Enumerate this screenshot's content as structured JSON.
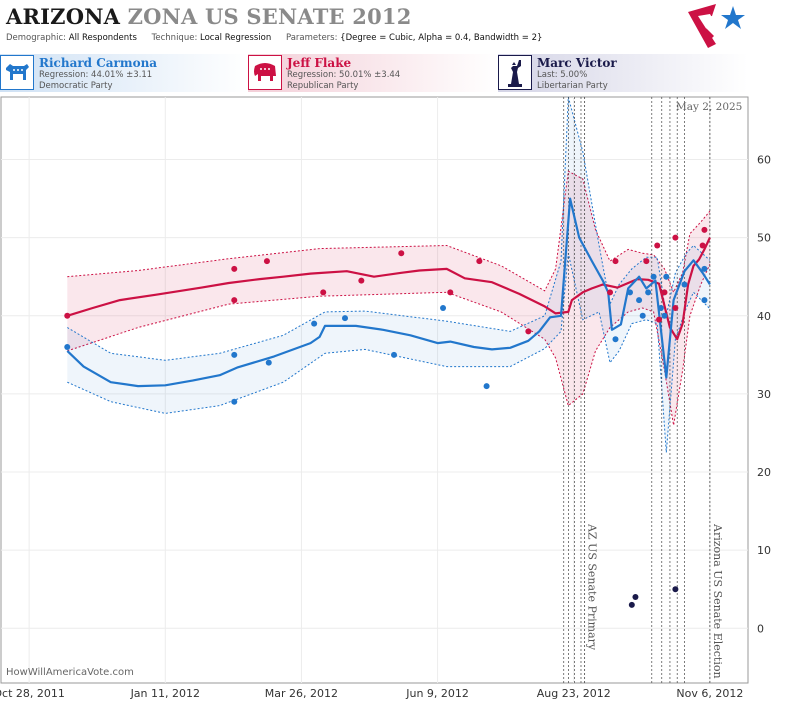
{
  "header": {
    "title_state": "ARIZONA",
    "title_rest": "ZONA US SENATE 2012",
    "demographic_label": "Demographic:",
    "demographic_value": "All Respondents",
    "technique_label": "Technique:",
    "technique_value": "Local Regression",
    "parameters_label": "Parameters:",
    "parameters_value": "{Degree = Cubic, Alpha = 0.4, Bandwidth = 2}"
  },
  "candidates": {
    "dem": {
      "name": "Richard Carmona",
      "stat": "Regression: 44.01% ±3.11",
      "party": "Democratic Party",
      "color": "#2277cc",
      "icon": "donkey-icon"
    },
    "rep": {
      "name": "Jeff Flake",
      "stat": "Regression: 50.01% ±3.44",
      "party": "Republican Party",
      "color": "#cc1144",
      "icon": "elephant-icon"
    },
    "lib": {
      "name": "Marc Victor",
      "stat": "Last: 5.00%",
      "party": "Libertarian Party",
      "color": "#1a1a4a",
      "icon": "statue-of-liberty-icon"
    }
  },
  "watermark": "HowWillAmericaVote.com",
  "date_stamp": "May 2, 2025",
  "chart_data": {
    "type": "line",
    "ylim": [
      -7,
      68
    ],
    "xlim_days": [
      -15.5,
      396
    ],
    "yticks": [
      0,
      10,
      20,
      30,
      40,
      50,
      60
    ],
    "xticks": [
      {
        "label": "Oct 28, 2011",
        "day": 0
      },
      {
        "label": "Jan 11, 2012",
        "day": 75
      },
      {
        "label": "Mar 26, 2012",
        "day": 150
      },
      {
        "label": "Jun 9, 2012",
        "day": 225
      },
      {
        "label": "Aug 23, 2012",
        "day": 300
      },
      {
        "label": "Nov 6, 2012",
        "day": 375
      }
    ],
    "events": [
      {
        "label": "AZ US Senate Primary",
        "day": 306
      },
      {
        "label": "Arizona US Senate Election",
        "day": 375
      }
    ],
    "series": [
      {
        "name": "Jeff Flake",
        "color": "#cc1144",
        "fill": "rgba(204,17,68,0.10)",
        "line": [
          [
            21,
            40
          ],
          [
            35,
            41
          ],
          [
            50,
            42
          ],
          [
            70,
            42.7
          ],
          [
            95,
            43.6
          ],
          [
            110,
            44.2
          ],
          [
            127,
            44.7
          ],
          [
            140,
            45
          ],
          [
            155,
            45.4
          ],
          [
            175,
            45.7
          ],
          [
            190,
            45
          ],
          [
            205,
            45.5
          ],
          [
            215,
            45.8
          ],
          [
            230,
            46
          ],
          [
            240,
            44.8
          ],
          [
            255,
            44.3
          ],
          [
            270,
            42.8
          ],
          [
            284,
            41.2
          ],
          [
            290,
            40.3
          ],
          [
            297,
            40.5
          ],
          [
            299,
            42
          ],
          [
            305,
            43
          ],
          [
            310,
            43.5
          ],
          [
            316,
            44
          ],
          [
            324,
            43.6
          ],
          [
            330,
            44.2
          ],
          [
            335,
            44.7
          ],
          [
            341,
            44.6
          ],
          [
            347,
            44.1
          ],
          [
            353,
            38.5
          ],
          [
            357,
            37
          ],
          [
            360,
            39
          ],
          [
            363,
            44
          ],
          [
            366,
            46.4
          ],
          [
            369,
            47.2
          ],
          [
            372,
            48.5
          ],
          [
            375,
            50.01
          ]
        ],
        "upper": [
          [
            21,
            45
          ],
          [
            60,
            45.8
          ],
          [
            110,
            47.3
          ],
          [
            160,
            48.6
          ],
          [
            230,
            49
          ],
          [
            260,
            46.4
          ],
          [
            284,
            43.2
          ],
          [
            290,
            46
          ],
          [
            297,
            58.5
          ],
          [
            305,
            57.5
          ],
          [
            312,
            51
          ],
          [
            320,
            47
          ],
          [
            330,
            48.5
          ],
          [
            338,
            48
          ],
          [
            344,
            47.8
          ],
          [
            350,
            46
          ],
          [
            355,
            43
          ],
          [
            360,
            45.5
          ],
          [
            364,
            50.5
          ],
          [
            370,
            52
          ],
          [
            375,
            53.4
          ]
        ],
        "lower": [
          [
            21,
            35.5
          ],
          [
            60,
            38.5
          ],
          [
            110,
            41.5
          ],
          [
            160,
            42.5
          ],
          [
            230,
            43
          ],
          [
            260,
            40.5
          ],
          [
            284,
            37
          ],
          [
            290,
            34.6
          ],
          [
            297,
            28.5
          ],
          [
            305,
            30
          ],
          [
            312,
            35.5
          ],
          [
            320,
            38.5
          ],
          [
            330,
            40.5
          ],
          [
            338,
            41
          ],
          [
            344,
            40.5
          ],
          [
            350,
            33
          ],
          [
            355,
            26
          ],
          [
            360,
            33
          ],
          [
            364,
            40
          ],
          [
            370,
            44
          ],
          [
            375,
            46.6
          ]
        ],
        "points": [
          [
            21,
            40
          ],
          [
            113,
            46
          ],
          [
            113,
            42
          ],
          [
            131,
            47
          ],
          [
            162,
            43
          ],
          [
            183,
            44.5
          ],
          [
            205,
            48
          ],
          [
            232,
            43
          ],
          [
            248,
            47
          ],
          [
            275,
            38
          ],
          [
            320,
            43
          ],
          [
            323,
            47
          ],
          [
            340,
            47
          ],
          [
            346,
            49
          ],
          [
            347,
            39.5
          ],
          [
            350,
            43
          ],
          [
            356,
            41
          ],
          [
            356,
            50
          ],
          [
            371,
            49
          ],
          [
            372,
            51
          ]
        ]
      },
      {
        "name": "Richard Carmona",
        "color": "#2277cc",
        "fill": "rgba(34,119,204,0.07)",
        "line": [
          [
            21,
            35.5
          ],
          [
            30,
            33.5
          ],
          [
            45,
            31.5
          ],
          [
            60,
            31
          ],
          [
            75,
            31.1
          ],
          [
            90,
            31.7
          ],
          [
            105,
            32.4
          ],
          [
            115,
            33.4
          ],
          [
            135,
            34.8
          ],
          [
            155,
            36.5
          ],
          [
            160,
            37.3
          ],
          [
            163,
            38.7
          ],
          [
            172,
            38.7
          ],
          [
            180,
            38.7
          ],
          [
            195,
            38.2
          ],
          [
            210,
            37.5
          ],
          [
            225,
            36.5
          ],
          [
            232,
            36.7
          ],
          [
            245,
            36
          ],
          [
            255,
            35.7
          ],
          [
            265,
            35.9
          ],
          [
            275,
            36.8
          ],
          [
            281,
            38
          ],
          [
            287,
            39.8
          ],
          [
            293,
            40
          ],
          [
            298,
            55
          ],
          [
            303,
            50
          ],
          [
            310,
            47
          ],
          [
            316,
            44.5
          ],
          [
            319,
            43
          ],
          [
            321,
            38.2
          ],
          [
            326,
            38.9
          ],
          [
            330,
            43.5
          ],
          [
            336,
            45
          ],
          [
            340,
            43.5
          ],
          [
            345,
            44.5
          ],
          [
            351,
            32.1
          ],
          [
            355,
            42
          ],
          [
            361,
            45.7
          ],
          [
            366,
            47.1
          ],
          [
            371,
            45.5
          ],
          [
            375,
            44.01
          ]
        ],
        "upper": [
          [
            21,
            38.5
          ],
          [
            45,
            35.2
          ],
          [
            75,
            34.3
          ],
          [
            105,
            35.2
          ],
          [
            140,
            37.5
          ],
          [
            163,
            40.5
          ],
          [
            185,
            40.6
          ],
          [
            230,
            39.3
          ],
          [
            265,
            38
          ],
          [
            284,
            40
          ],
          [
            293,
            47
          ],
          [
            297,
            68
          ],
          [
            305,
            61
          ],
          [
            314,
            49
          ],
          [
            320,
            41.5
          ],
          [
            325,
            44
          ],
          [
            332,
            46
          ],
          [
            340,
            47.5
          ],
          [
            346,
            47.5
          ],
          [
            351,
            40
          ],
          [
            356,
            45.5
          ],
          [
            362,
            48
          ],
          [
            366,
            49
          ],
          [
            375,
            47.1
          ]
        ],
        "lower": [
          [
            21,
            31.5
          ],
          [
            45,
            29
          ],
          [
            75,
            27.5
          ],
          [
            105,
            28.5
          ],
          [
            140,
            31.5
          ],
          [
            163,
            35.2
          ],
          [
            185,
            35.7
          ],
          [
            230,
            33.5
          ],
          [
            265,
            33.5
          ],
          [
            284,
            35.8
          ],
          [
            293,
            38
          ],
          [
            297,
            48
          ],
          [
            305,
            39.5
          ],
          [
            314,
            40.5
          ],
          [
            320,
            34
          ],
          [
            325,
            35.5
          ],
          [
            332,
            39
          ],
          [
            340,
            39.5
          ],
          [
            346,
            39
          ],
          [
            351,
            22.5
          ],
          [
            356,
            37
          ],
          [
            362,
            41
          ],
          [
            366,
            43
          ],
          [
            375,
            40.9
          ]
        ],
        "points": [
          [
            21,
            36
          ],
          [
            113,
            35
          ],
          [
            113,
            29
          ],
          [
            132,
            34
          ],
          [
            157,
            39
          ],
          [
            174,
            39.7
          ],
          [
            201,
            35
          ],
          [
            228,
            41
          ],
          [
            252,
            31
          ],
          [
            323,
            37
          ],
          [
            331,
            43
          ],
          [
            336,
            42
          ],
          [
            338,
            40
          ],
          [
            341,
            43
          ],
          [
            344,
            45
          ],
          [
            348,
            41
          ],
          [
            350,
            40
          ],
          [
            351,
            45
          ],
          [
            361,
            44
          ],
          [
            372,
            42
          ],
          [
            372,
            46
          ]
        ]
      },
      {
        "name": "Marc Victor",
        "color": "#1a1a4a",
        "points": [
          [
            332,
            3
          ],
          [
            334,
            4
          ],
          [
            356,
            5
          ]
        ]
      }
    ]
  }
}
